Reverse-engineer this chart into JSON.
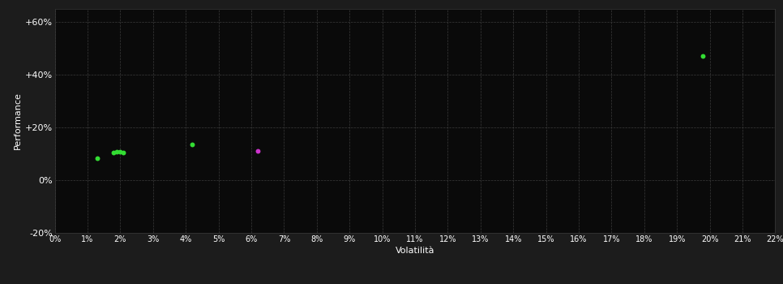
{
  "background_color": "#1c1c1c",
  "plot_bg_color": "#0a0a0a",
  "grid_color": "#3a3a3a",
  "text_color": "#ffffff",
  "xlabel": "Volatilità",
  "ylabel": "Performance",
  "xlim": [
    0,
    0.22
  ],
  "ylim": [
    -0.2,
    0.65
  ],
  "xticks": [
    0.0,
    0.01,
    0.02,
    0.03,
    0.04,
    0.05,
    0.06,
    0.07,
    0.08,
    0.09,
    0.1,
    0.11,
    0.12,
    0.13,
    0.14,
    0.15,
    0.16,
    0.17,
    0.18,
    0.19,
    0.2,
    0.21,
    0.22
  ],
  "yticks": [
    -0.2,
    0.0,
    0.2,
    0.4,
    0.6
  ],
  "ytick_labels": [
    "-20%",
    "0%",
    "+20%",
    "+40%",
    "+60%"
  ],
  "green_points": [
    [
      0.013,
      0.082
    ],
    [
      0.018,
      0.103
    ],
    [
      0.019,
      0.108
    ],
    [
      0.02,
      0.106
    ],
    [
      0.021,
      0.105
    ],
    [
      0.042,
      0.135
    ],
    [
      0.198,
      0.47
    ]
  ],
  "magenta_points": [
    [
      0.062,
      0.112
    ]
  ],
  "point_size": 18,
  "green_color": "#33dd33",
  "magenta_color": "#cc33cc"
}
